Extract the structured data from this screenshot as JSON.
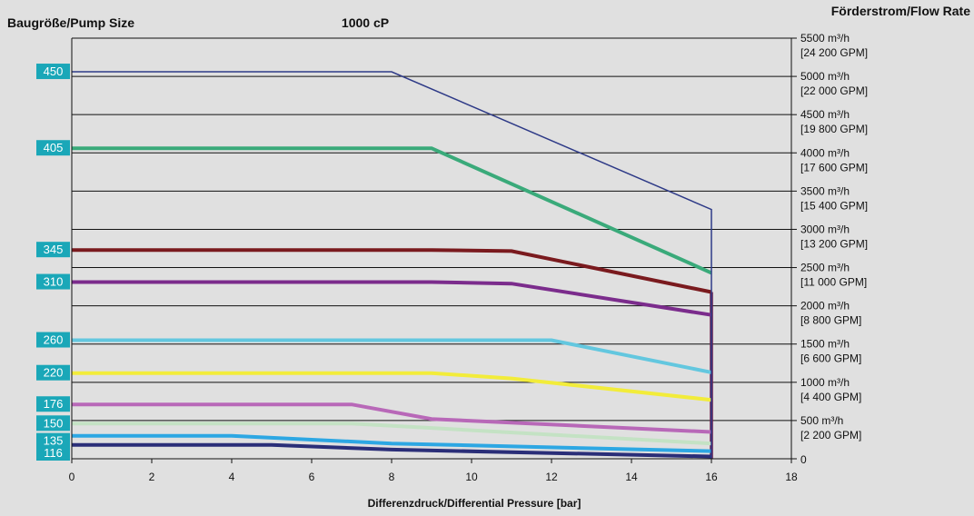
{
  "chart_data": {
    "type": "line",
    "title": "1000 cP",
    "left_axis_title": "Baugröße/Pump Size",
    "right_axis_title": "Förderstrom/Flow Rate",
    "xlabel": "Differenzdruck/Differential Pressure [bar]",
    "xlim": [
      0,
      18
    ],
    "ylim": [
      0,
      5500
    ],
    "x_ticks": [
      "0",
      "2",
      "4",
      "6",
      "8",
      "10",
      "12",
      "14",
      "16",
      "18"
    ],
    "y_tick_values": [
      500,
      1000,
      1500,
      2000,
      2500,
      3000,
      3500,
      4000,
      4500,
      5000,
      5500
    ],
    "y_tick_labels": [
      {
        "value": 5500,
        "line1": "5500 m³/h",
        "line2": "[24 200 GPM]"
      },
      {
        "value": 5000,
        "line1": "5000 m³/h",
        "line2": "[22 000 GPM]"
      },
      {
        "value": 4500,
        "line1": "4500 m³/h",
        "line2": "[19 800 GPM]"
      },
      {
        "value": 4000,
        "line1": "4000 m³/h",
        "line2": "[17 600 GPM]"
      },
      {
        "value": 3500,
        "line1": "3500 m³/h",
        "line2": "[15 400 GPM]"
      },
      {
        "value": 3000,
        "line1": "3000 m³/h",
        "line2": "[13 200 GPM]"
      },
      {
        "value": 2500,
        "line1": "2500 m³/h",
        "line2": "[11 000 GPM]"
      },
      {
        "value": 2000,
        "line1": "2000 m³/h",
        "line2": "[8 800 GPM]"
      },
      {
        "value": 1500,
        "line1": "1500 m³/h",
        "line2": "[6 600 GPM]"
      },
      {
        "value": 1000,
        "line1": "1000 m³/h",
        "line2": "[4 400 GPM]"
      },
      {
        "value": 500,
        "line1": "500 m³/h",
        "line2": "[2 200 GPM]"
      },
      {
        "value": 0,
        "line1": "0",
        "line2": ""
      }
    ],
    "grid": "horizontal",
    "series": [
      {
        "name": "450",
        "color": "#2e3a87",
        "width": 1.5,
        "x": [
          0,
          8,
          16,
          16
        ],
        "y": [
          5060,
          5060,
          3260,
          0
        ]
      },
      {
        "name": "405",
        "color": "#3aaa7a",
        "width": 4,
        "x": [
          0,
          9,
          16
        ],
        "y": [
          4060,
          4060,
          2430
        ]
      },
      {
        "name": "345",
        "color": "#7a1a1e",
        "width": 4,
        "x": [
          0,
          9,
          11,
          16
        ],
        "y": [
          2730,
          2730,
          2715,
          2180
        ]
      },
      {
        "name": "310",
        "color": "#7b2c8c",
        "width": 4,
        "x": [
          0,
          9,
          11,
          16
        ],
        "y": [
          2310,
          2310,
          2290,
          1880
        ]
      },
      {
        "name": "260",
        "color": "#63c7df",
        "width": 4,
        "x": [
          0,
          12,
          16
        ],
        "y": [
          1550,
          1550,
          1130
        ]
      },
      {
        "name": "220",
        "color": "#f2ec3a",
        "width": 4,
        "x": [
          0,
          9,
          11,
          16
        ],
        "y": [
          1120,
          1120,
          1050,
          770
        ]
      },
      {
        "name": "176",
        "color": "#b868b8",
        "width": 4,
        "x": [
          0,
          7,
          9,
          16
        ],
        "y": [
          710,
          710,
          520,
          350
        ]
      },
      {
        "name": "150",
        "color": "#c4e2c4",
        "width": 4,
        "x": [
          0,
          7,
          16
        ],
        "y": [
          460,
          460,
          200
        ]
      },
      {
        "name": "135",
        "color": "#2da7e3",
        "width": 4,
        "x": [
          0,
          4,
          8,
          16
        ],
        "y": [
          300,
          300,
          200,
          100
        ]
      },
      {
        "name": "116",
        "color": "#2a2e78",
        "width": 4,
        "x": [
          0,
          5,
          8,
          16
        ],
        "y": [
          180,
          180,
          120,
          30
        ]
      }
    ],
    "size_labels": [
      {
        "label": "450",
        "value": 5060
      },
      {
        "label": "405",
        "value": 4060
      },
      {
        "label": "345",
        "value": 2730
      },
      {
        "label": "310",
        "value": 2310
      },
      {
        "label": "260",
        "value": 1550
      },
      {
        "label": "220",
        "value": 1120
      },
      {
        "label": "176",
        "value": 710
      },
      {
        "label": "150",
        "value": 460
      },
      {
        "label": "135",
        "value": 230
      },
      {
        "label": "116",
        "value": 0
      }
    ],
    "end_marker": {
      "color": "#6b1a4a",
      "x": 16,
      "y_top": 2180,
      "y_bottom": 0
    },
    "label_box_color": "#1aa7b8",
    "label_text_color": "#ffffff"
  }
}
